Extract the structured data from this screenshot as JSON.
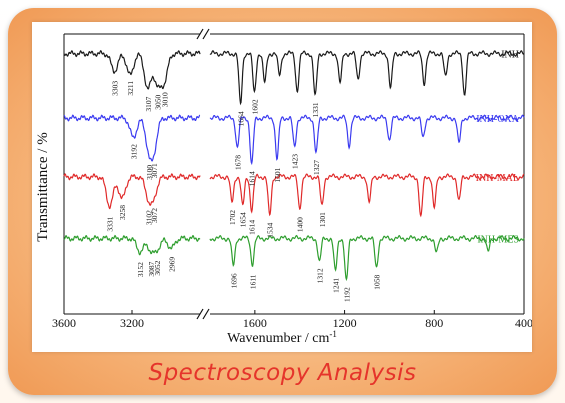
{
  "caption": "Spectroscopy Analysis",
  "chart_data": {
    "type": "line",
    "title": "",
    "xlabel": "Wavenumber / cm",
    "xlabel_sup": "-1",
    "ylabel": "Transmittance / %",
    "x_axis_reversed": true,
    "axis_break": true,
    "xlim_left_segment": [
      3600,
      2800
    ],
    "xlim_right_segment": [
      1800,
      400
    ],
    "xticks": [
      3600,
      3200,
      1600,
      1200,
      800,
      400
    ],
    "xtick_labels": [
      "3600",
      "3200",
      "1600",
      "1200",
      "800",
      "400"
    ],
    "series": [
      {
        "name": "INH",
        "color": "#1a1a1a",
        "baseline": 0.93,
        "peaks": [
          {
            "x": 3303,
            "depth": 0.18,
            "label": "3303"
          },
          {
            "x": 3211,
            "depth": 0.22,
            "label": "3211"
          },
          {
            "x": 3107,
            "depth": 0.36,
            "label": "3107"
          },
          {
            "x": 3050,
            "depth": 0.3,
            "label": "3050"
          },
          {
            "x": 3010,
            "depth": 0.27,
            "label": "3010"
          },
          {
            "x": 1664,
            "depth": 0.52,
            "label": "1664"
          },
          {
            "x": 1602,
            "depth": 0.4,
            "label": "1602"
          },
          {
            "x": 1556,
            "depth": 0.3,
            "label": ""
          },
          {
            "x": 1490,
            "depth": 0.22,
            "label": ""
          },
          {
            "x": 1411,
            "depth": 0.38,
            "label": ""
          },
          {
            "x": 1331,
            "depth": 0.44,
            "label": "1331"
          },
          {
            "x": 1220,
            "depth": 0.3,
            "label": ""
          },
          {
            "x": 1140,
            "depth": 0.26,
            "label": ""
          },
          {
            "x": 995,
            "depth": 0.35,
            "label": ""
          },
          {
            "x": 845,
            "depth": 0.3,
            "label": ""
          },
          {
            "x": 750,
            "depth": 0.24,
            "label": ""
          },
          {
            "x": 665,
            "depth": 0.42,
            "label": ""
          }
        ]
      },
      {
        "name": "INH-OXA",
        "color": "#3b3bf0",
        "baseline": 0.7,
        "peaks": [
          {
            "x": 3192,
            "depth": 0.2,
            "label": "3192"
          },
          {
            "x": 3100,
            "depth": 0.3,
            "label": "3100"
          },
          {
            "x": 3071,
            "depth": 0.28,
            "label": "3071"
          },
          {
            "x": 1678,
            "depth": 0.3,
            "label": "1678"
          },
          {
            "x": 1614,
            "depth": 0.48,
            "label": "1614"
          },
          {
            "x": 1501,
            "depth": 0.42,
            "label": "1501"
          },
          {
            "x": 1423,
            "depth": 0.3,
            "label": "1423"
          },
          {
            "x": 1327,
            "depth": 0.36,
            "label": "1327"
          },
          {
            "x": 1180,
            "depth": 0.28,
            "label": ""
          },
          {
            "x": 1000,
            "depth": 0.22,
            "label": ""
          },
          {
            "x": 850,
            "depth": 0.2,
            "label": ""
          },
          {
            "x": 690,
            "depth": 0.26,
            "label": ""
          }
        ]
      },
      {
        "name": "INH-MAL",
        "color": "#e02a2a",
        "baseline": 0.49,
        "peaks": [
          {
            "x": 3331,
            "depth": 0.3,
            "label": "3331"
          },
          {
            "x": 3258,
            "depth": 0.22,
            "label": "3258"
          },
          {
            "x": 3102,
            "depth": 0.2,
            "label": "3102"
          },
          {
            "x": 3072,
            "depth": 0.18,
            "label": "3072"
          },
          {
            "x": 1702,
            "depth": 0.26,
            "label": "1702"
          },
          {
            "x": 1654,
            "depth": 0.3,
            "label": "1654"
          },
          {
            "x": 1614,
            "depth": 0.34,
            "label": "1614"
          },
          {
            "x": 1534,
            "depth": 0.4,
            "label": "1534"
          },
          {
            "x": 1400,
            "depth": 0.32,
            "label": "1400"
          },
          {
            "x": 1301,
            "depth": 0.3,
            "label": "1301"
          },
          {
            "x": 1090,
            "depth": 0.26,
            "label": ""
          },
          {
            "x": 860,
            "depth": 0.42,
            "label": ""
          },
          {
            "x": 800,
            "depth": 0.32,
            "label": ""
          },
          {
            "x": 690,
            "depth": 0.25,
            "label": ""
          }
        ]
      },
      {
        "name": "INH-MES",
        "color": "#2e9e2e",
        "baseline": 0.27,
        "peaks": [
          {
            "x": 3152,
            "depth": 0.14,
            "label": "3152"
          },
          {
            "x": 3087,
            "depth": 0.12,
            "label": "3087"
          },
          {
            "x": 3052,
            "depth": 0.1,
            "label": "3052"
          },
          {
            "x": 2969,
            "depth": 0.1,
            "label": "2969"
          },
          {
            "x": 1696,
            "depth": 0.28,
            "label": "1696"
          },
          {
            "x": 1611,
            "depth": 0.26,
            "label": "1611"
          },
          {
            "x": 1312,
            "depth": 0.24,
            "label": "1312"
          },
          {
            "x": 1241,
            "depth": 0.34,
            "label": "1241"
          },
          {
            "x": 1192,
            "depth": 0.44,
            "label": "1192"
          },
          {
            "x": 1058,
            "depth": 0.3,
            "label": "1058"
          },
          {
            "x": 790,
            "depth": 0.15,
            "label": ""
          },
          {
            "x": 560,
            "depth": 0.14,
            "label": ""
          }
        ]
      }
    ]
  }
}
